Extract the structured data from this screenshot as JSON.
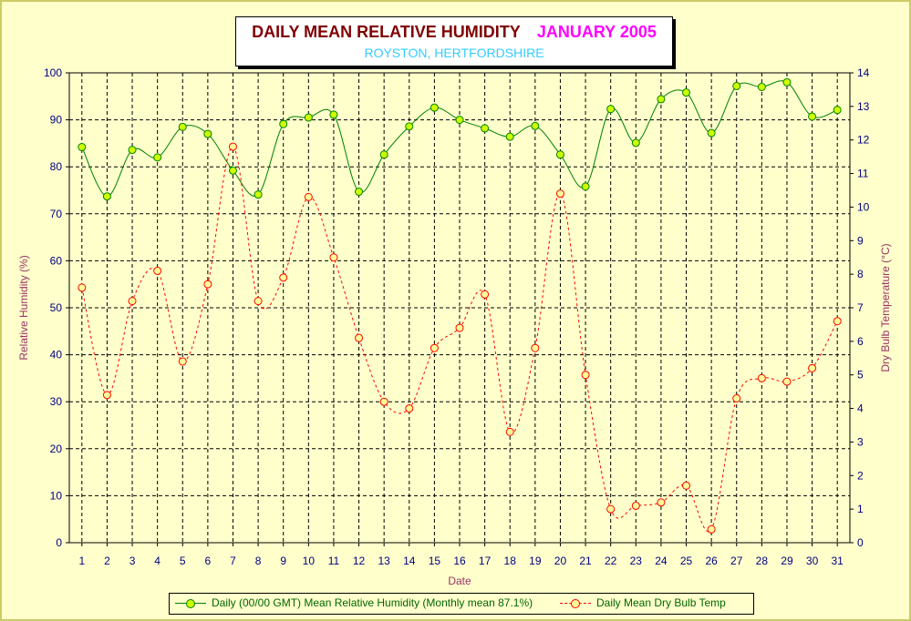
{
  "chart_data": {
    "type": "line",
    "title": "DAILY MEAN RELATIVE HUMIDITY",
    "title_period": "JANUARY 2005",
    "subtitle": "ROYSTON, HERTFORDSHIRE",
    "xlabel": "Date",
    "ylabel_left": "Relative Humidity (%)",
    "ylabel_right": "Dry Bulb Temperature (°C)",
    "x": [
      1,
      2,
      3,
      4,
      5,
      6,
      7,
      8,
      9,
      10,
      11,
      12,
      13,
      14,
      15,
      16,
      17,
      18,
      19,
      20,
      21,
      22,
      23,
      24,
      25,
      26,
      27,
      28,
      29,
      30,
      31
    ],
    "ylim_left": [
      0,
      100
    ],
    "yticks_left": [
      0,
      10,
      20,
      30,
      40,
      50,
      60,
      70,
      80,
      90,
      100
    ],
    "ylim_right": [
      0,
      14
    ],
    "yticks_right": [
      0,
      1,
      2,
      3,
      4,
      5,
      6,
      7,
      8,
      9,
      10,
      11,
      12,
      13,
      14
    ],
    "grid": true,
    "legend_position": "bottom",
    "series": [
      {
        "name": "Daily (00/00 GMT) Mean Relative Humidity (Monthly mean 87.1%)",
        "axis": "left",
        "color": "#008000",
        "marker_fill": "#ccff00",
        "line_style": "solid",
        "values": [
          84.2,
          73.7,
          83.6,
          82.0,
          88.5,
          87.0,
          79.2,
          74.1,
          89.1,
          90.5,
          91.1,
          74.7,
          82.6,
          88.6,
          92.6,
          90.0,
          88.2,
          86.4,
          88.7,
          82.6,
          75.8,
          92.3,
          85.1,
          94.4,
          95.8,
          87.2,
          97.2,
          97.0,
          98.0,
          90.7,
          92.1
        ]
      },
      {
        "name": "Daily Mean Dry Bulb Temp",
        "axis": "right",
        "color": "#ff0000",
        "marker_fill": "#ffff99",
        "line_style": "dashed",
        "values": [
          7.6,
          4.4,
          7.2,
          8.1,
          5.4,
          7.7,
          11.8,
          7.2,
          7.9,
          10.3,
          8.5,
          6.1,
          4.2,
          4.0,
          5.8,
          6.4,
          7.4,
          3.3,
          5.8,
          10.4,
          5.0,
          1.0,
          1.1,
          1.2,
          1.7,
          0.4,
          4.3,
          4.9,
          4.8,
          5.2,
          6.6
        ]
      }
    ]
  },
  "colors": {
    "background": "#ffffcc",
    "plot_background": "#ffffcc",
    "axis_text": "#000080",
    "axis_label_left": "#993366",
    "grid": "#000000"
  }
}
